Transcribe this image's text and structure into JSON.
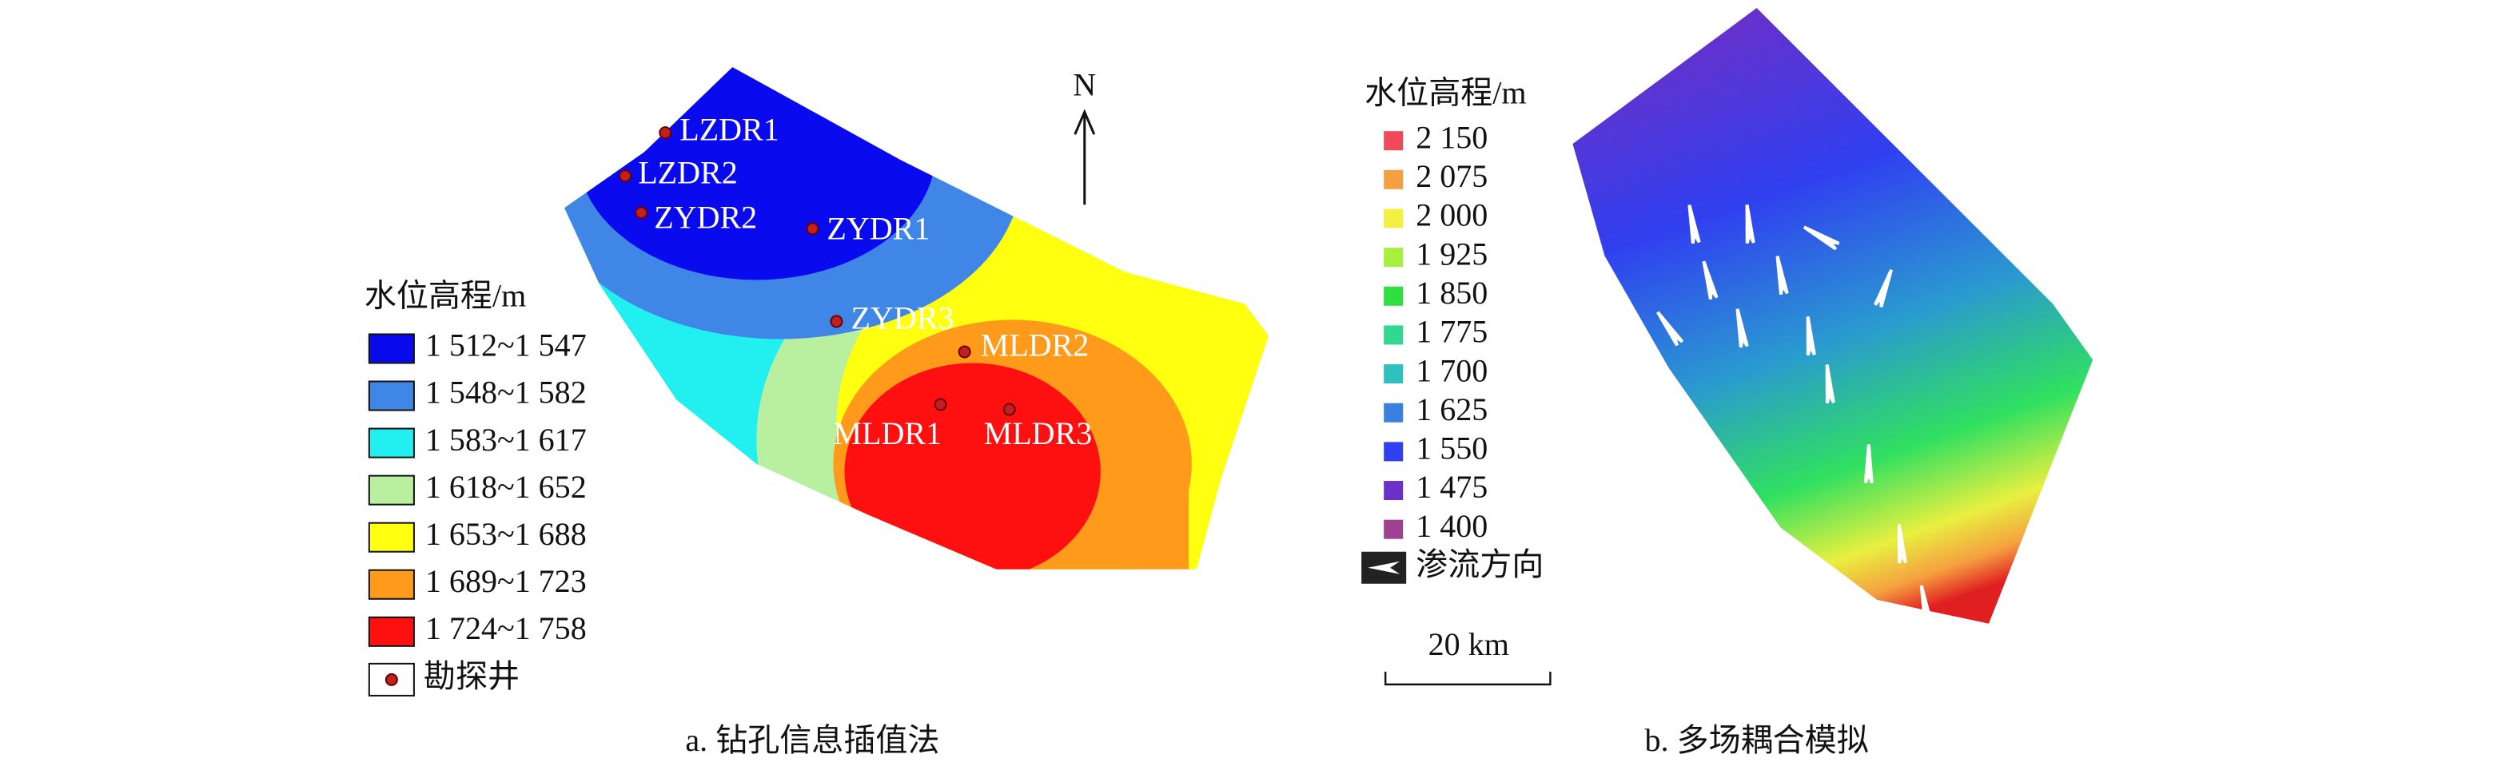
{
  "panel_a": {
    "legend_title": "水位高程/m",
    "legend": [
      {
        "label": "1 512~1 547",
        "color": "#0a0aee"
      },
      {
        "label": "1 548~1 582",
        "color": "#3f86e6"
      },
      {
        "label": "1 583~1 617",
        "color": "#22f0f0"
      },
      {
        "label": "1 618~1 652",
        "color": "#b8f0a0"
      },
      {
        "label": "1 653~1 688",
        "color": "#ffff10"
      },
      {
        "label": "1 689~1 723",
        "color": "#ff9a1a"
      },
      {
        "label": "1 724~1 758",
        "color": "#ff1010"
      }
    ],
    "well_legend": "勘探井",
    "wells": [
      "LZDR1",
      "LZDR2",
      "ZYDR2",
      "ZYDR1",
      "ZYDR3",
      "MLDR2",
      "MLDR1",
      "MLDR3"
    ],
    "north": "N",
    "caption": "a. 钻孔信息插值法"
  },
  "panel_b": {
    "legend_title": "水位高程/m",
    "legend": [
      {
        "label": "2 150",
        "color": "#f04a5a"
      },
      {
        "label": "2 075",
        "color": "#f5a040"
      },
      {
        "label": "2 000",
        "color": "#f2f040"
      },
      {
        "label": "1 925",
        "color": "#a8f040"
      },
      {
        "label": "1 850",
        "color": "#30e040"
      },
      {
        "label": "1 775",
        "color": "#30d890"
      },
      {
        "label": "1 700",
        "color": "#30c0c0"
      },
      {
        "label": "1 625",
        "color": "#3a80e0"
      },
      {
        "label": "1 550",
        "color": "#3040f0"
      },
      {
        "label": "1 475",
        "color": "#6a30c8"
      },
      {
        "label": "1 400",
        "color": "#a04090"
      }
    ],
    "flow_legend": "渗流方向",
    "scale_bar": "20 km",
    "caption": "b. 多场耦合模拟"
  }
}
